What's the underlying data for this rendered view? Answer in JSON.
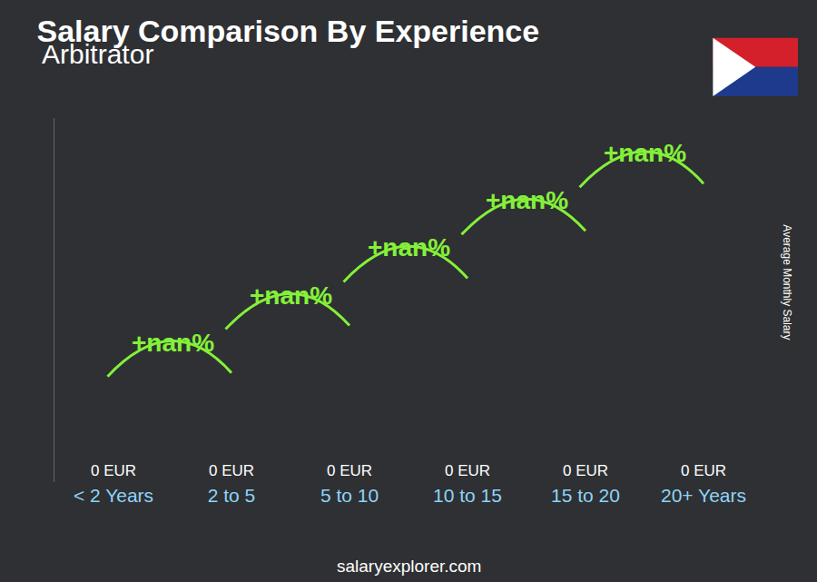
{
  "chart_data": {
    "type": "bar",
    "title": "Salary Comparison By Experience",
    "subtitle": "Arbitrator",
    "categories": [
      "< 2 Years",
      "2 to 5",
      "5 to 10",
      "10 to 15",
      "15 to 20",
      "20+ Years"
    ],
    "values": [
      0,
      0,
      0,
      0,
      0,
      0
    ],
    "value_labels": [
      "0 EUR",
      "0 EUR",
      "0 EUR",
      "0 EUR",
      "0 EUR",
      "0 EUR"
    ],
    "data_labels": true,
    "color": "#29a9e0",
    "ylabel": "Average Monthly Salary",
    "ylim": [
      0,
      1
    ],
    "tick_labels": "x",
    "annotations": [
      "+nan%",
      "+nan%",
      "+nan%",
      "+nan%",
      "+nan%"
    ],
    "footer": "salaryexplorer.com"
  }
}
